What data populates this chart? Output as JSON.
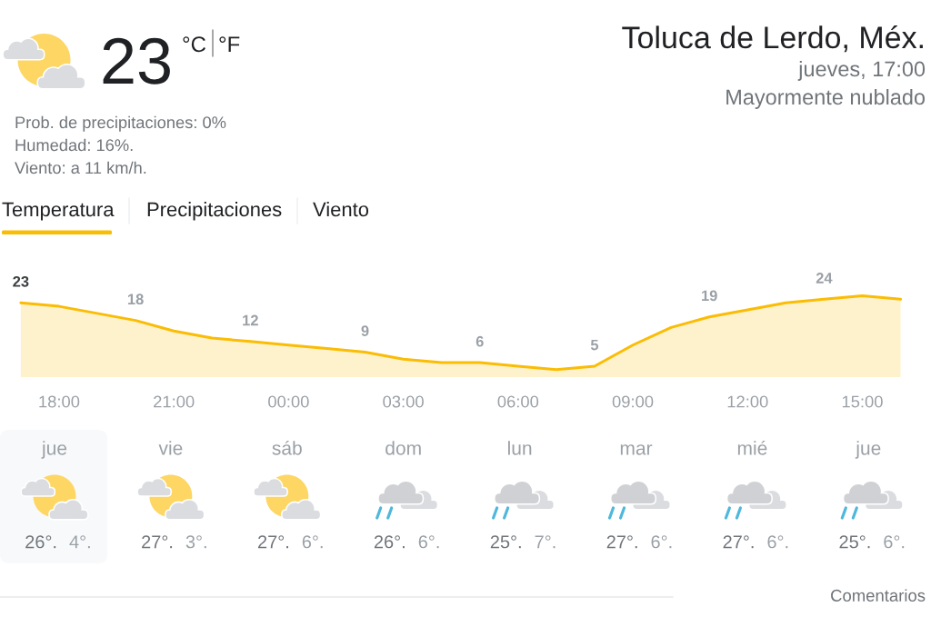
{
  "chart_data": [
    {
      "type": "other",
      "title": "Toluca de Lerdo, Méx.",
      "subtitle": "jueves, 17:00",
      "annotations": [
        "23",
        "°C",
        "°F",
        "Mayormente nublado",
        "Prob. de precipitaciones: 0%",
        "Humedad: 16%.",
        "Viento: a 11 km/h.",
        "Temperatura",
        "Precipitaciones",
        "Viento"
      ]
    },
    {
      "type": "area",
      "categories": [
        null,
        "18:00",
        null,
        null,
        "21:00",
        null,
        null,
        "00:00",
        null,
        null,
        "03:00",
        null,
        null,
        "06:00",
        null,
        null,
        "09:00",
        null,
        null,
        "12:00",
        null,
        null,
        "15:00",
        null
      ],
      "values": [
        23,
        22,
        20,
        18,
        15,
        13,
        12,
        11,
        10,
        9,
        7,
        6,
        6,
        5,
        4,
        5,
        11,
        16,
        19,
        21,
        23,
        24,
        25,
        24
      ],
      "value_labels": [
        "23",
        null,
        null,
        "18",
        null,
        null,
        "12",
        null,
        null,
        "9",
        null,
        null,
        "6",
        null,
        null,
        "5",
        null,
        null,
        "19",
        null,
        null,
        "24",
        null,
        null
      ],
      "color": "#fbbc04",
      "tick_labels": "x"
    },
    {
      "type": "other",
      "categories": [
        "jue",
        "vie",
        "sáb",
        "dom",
        "lun",
        "mar",
        "mié",
        "jue"
      ],
      "annotations": [
        "26°.",
        "4°.",
        "27°.",
        "3°.",
        "27°.",
        "6°.",
        "26°.",
        "6°.",
        "25°.",
        "7°.",
        "27°.",
        "6°.",
        "27°.",
        "6°.",
        "25°.",
        "6°.",
        "Comentarios"
      ]
    }
  ]
}
